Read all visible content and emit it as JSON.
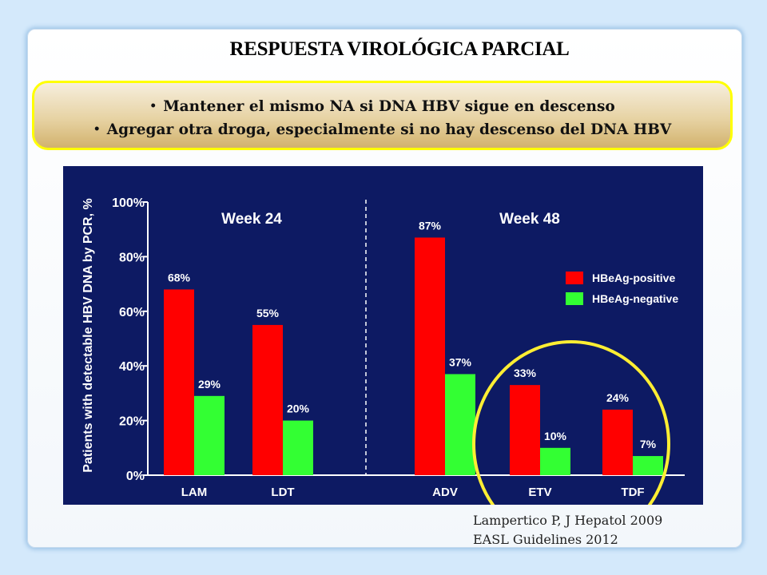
{
  "slide": {
    "title": "RESPUESTA VIROLÓGICA PARCIAL",
    "bullets": [
      "Mantener el mismo NA si DNA HBV sigue en descenso",
      "Agregar otra droga, especialmente si no hay descenso del DNA HBV"
    ],
    "references": [
      "Lampertico P, J Hepatol 2009",
      "EASL Guidelines  2012"
    ]
  },
  "colors": {
    "chart_background": "#0d1a63",
    "positive": "#ff0000",
    "negative": "#33ff33",
    "highlight_circle": "#ffee33"
  },
  "chart_data": {
    "type": "bar",
    "title": "",
    "ylabel": "Patients with detectable HBV DNA by PCR, %",
    "xlabel": "",
    "ylim": [
      0,
      100
    ],
    "yticks": [
      "0%",
      "20%",
      "40%",
      "60%",
      "80%",
      "100%"
    ],
    "groups": [
      {
        "label": "Week 24",
        "categories": [
          "LAM",
          "LDT"
        ]
      },
      {
        "label": "Week 48",
        "categories": [
          "ADV",
          "ETV",
          "TDF"
        ]
      }
    ],
    "categories": [
      "LAM",
      "LDT",
      "ADV",
      "ETV",
      "TDF"
    ],
    "series": [
      {
        "name": "HBeAg-positive",
        "values": [
          68,
          55,
          87,
          33,
          24
        ],
        "labels": [
          "68%",
          "55%",
          "87%",
          "33%",
          "24%"
        ]
      },
      {
        "name": "HBeAg-negative",
        "values": [
          29,
          20,
          37,
          10,
          7
        ],
        "labels": [
          "29%",
          "20%",
          "37%",
          "10%",
          "7%"
        ]
      }
    ],
    "legend": "right",
    "grid": false
  }
}
